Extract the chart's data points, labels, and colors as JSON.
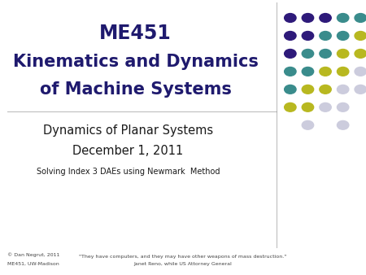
{
  "title_line1": "ME451",
  "title_line2": "Kinematics and Dynamics",
  "title_line3": "of Machine Systems",
  "subtitle1": "Dynamics of Planar Systems",
  "subtitle2": "December 1, 2011",
  "subtitle3": "Solving Index 3 DAEs using Newmark  Method",
  "footer_left1": "© Dan Negrut, 2011",
  "footer_left2": "ME451, UW-Madison",
  "footer_quote1": "\"They have computers, and they may have other weapons of mass destruction.\"",
  "footer_quote2": "Janet Reno, while US Attorney General",
  "bg_color": "#ffffff",
  "title_color": "#1F1A6E",
  "text_color": "#1a1a1a",
  "footer_color": "#444444",
  "hline_color": "#999999",
  "vline_color": "#999999",
  "dot_colors": {
    "purple": "#2E1A7A",
    "teal": "#3A8C8C",
    "yellow": "#B8B820",
    "light": "#CCCCDD"
  },
  "vline_x": 0.755,
  "hline_y": 0.595
}
